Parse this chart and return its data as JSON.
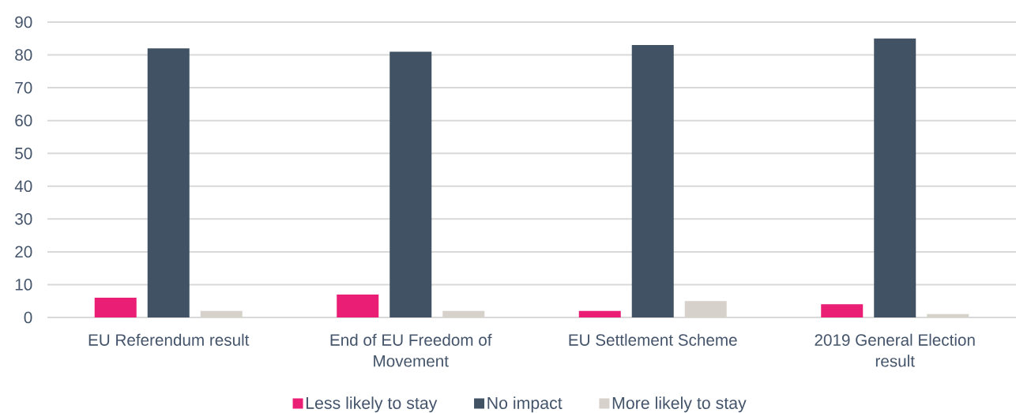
{
  "chart_data": {
    "type": "bar",
    "categories": [
      "EU Referendum result",
      "End of EU Freedom of Movement",
      "EU Settlement Scheme",
      "2019 General Election result"
    ],
    "series": [
      {
        "name": "Less likely to stay",
        "color": "#e91e74",
        "values": [
          6,
          7,
          2,
          4
        ]
      },
      {
        "name": "No impact",
        "color": "#405263",
        "values": [
          82,
          81,
          83,
          85
        ]
      },
      {
        "name": "More likely to stay",
        "color": "#d6d1cb",
        "values": [
          2,
          2,
          5,
          1
        ]
      }
    ],
    "ylim": [
      0,
      90
    ],
    "yticks": [
      0,
      10,
      20,
      30,
      40,
      50,
      60,
      70,
      80,
      90
    ],
    "grid": "y",
    "legend": "bottom"
  }
}
